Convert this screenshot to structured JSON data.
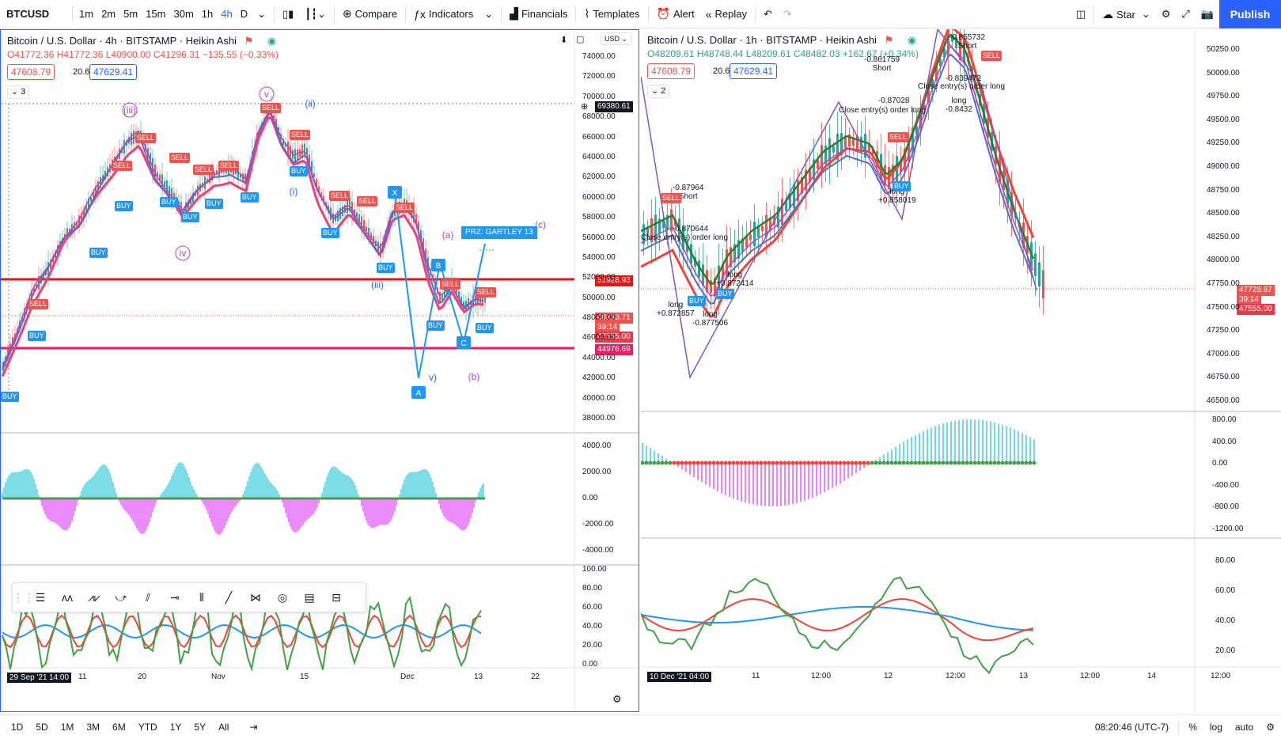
{
  "toolbar": {
    "symbol": "BTCUSD",
    "intervals": [
      "1m",
      "2m",
      "5m",
      "15m",
      "30m",
      "1h",
      "4h",
      "D"
    ],
    "active_interval": "4h",
    "compare": "Compare",
    "indicators": "Indicators",
    "financials": "Financials",
    "templates": "Templates",
    "alert": "Alert",
    "replay": "Replay",
    "star": "Star",
    "publish": "Publish"
  },
  "left": {
    "title": "Bitcoin / U.S. Dollar · 4h · BITSTAMP · Heikin Ashi",
    "ohlc": "O41772.36 H41772.36 L40900.00 C41296.31 −135.55 (−0.33%)",
    "bid": "47608.79",
    "spread": "20.62",
    "ask": "47629.41",
    "count": "3",
    "currency": "USD",
    "price_axis": [
      "74000.00",
      "72000.00",
      "70000.00",
      "68000.00",
      "66000.00",
      "64000.00",
      "62000.00",
      "60000.00",
      "58000.00",
      "56000.00",
      "54000.00",
      "52000.00",
      "50000.00",
      "48000.00",
      "46000.00",
      "44000.00",
      "42000.00",
      "40000.00",
      "38000.00"
    ],
    "price_labels": {
      "top": "69380.61",
      "red": "51928.93",
      "current": "48233.71",
      "countdown": "39:14",
      "low": "47555.00",
      "pink": "44976.69"
    },
    "osc_axis": [
      "4000.00",
      "2000.00",
      "0.00",
      "-2000.00",
      "-4000.00"
    ],
    "rsi_axis": [
      "100.00",
      "80.00",
      "60.00",
      "40.00",
      "20.00",
      "0.00"
    ],
    "time_axis": [
      "29 Sep '21",
      "14:00",
      "11",
      "20",
      "Nov",
      "15",
      "Dec",
      "13",
      "22"
    ],
    "annotations": {
      "prz": "PRZ: GARTLEY 13",
      "a_label": "(a)",
      "b_label": "(b)",
      "c_label": "(c)",
      "iii": "(iii)",
      "iv": "iv",
      "v": "v",
      "ii": "(ii)",
      "i": "(i)",
      "iii2": "(iii)",
      "v2": "v)",
      "pt_a": "A",
      "pt_b": "B",
      "pt_x": "X",
      "pt_c": "C"
    },
    "signal_buy": "BUY",
    "signal_sell": "SELL"
  },
  "right": {
    "title": "Bitcoin / U.S. Dollar · 1h · BITSTAMP · Heikin Ashi",
    "ohlc": "O48209.61 H48748.44 L48209.61 C48482.03 +162.67 (+0.34%)",
    "bid": "47608.79",
    "spread": "20.62",
    "ask": "47629.41",
    "count": "2",
    "price_axis": [
      "50250.00",
      "50000.00",
      "49750.00",
      "49500.00",
      "49250.00",
      "49000.00",
      "48750.00",
      "48500.00",
      "48250.00",
      "48000.00",
      "47750.00",
      "47500.00",
      "47250.00",
      "47000.00",
      "46750.00",
      "46500.00"
    ],
    "price_labels": {
      "current": "47728.87",
      "countdown": "39:14",
      "low": "47555.00"
    },
    "osc_axis": [
      "800.00",
      "400.00",
      "0.00",
      "-400.00",
      "-800.00",
      "-1200.00"
    ],
    "rsi_axis": [
      "80.00",
      "60.00",
      "40.00",
      "20.00"
    ],
    "time_axis": [
      "10 Dec '21",
      "04:00",
      "11",
      "12:00",
      "12",
      "12:00",
      "13",
      "12:00",
      "14",
      "12:00"
    ],
    "trade_notes": [
      {
        "a": "-0.855732",
        "b": "Short"
      },
      {
        "a": "-0.861759",
        "b": "Short"
      },
      {
        "a": "-0.839472",
        "b": ""
      },
      {
        "a": "Close entry(s) order long",
        "b": ""
      },
      {
        "a": "-0.87028",
        "b": ""
      },
      {
        "a": "Close entry(s) order long",
        "b": ""
      },
      {
        "a": "long",
        "b": "-0.8432"
      },
      {
        "a": "-0.87964",
        "b": "Short"
      },
      {
        "a": "long",
        "b": "+0.858019"
      },
      {
        "a": "-0.870644",
        "b": ""
      },
      {
        "a": "Close entry(s) order long",
        "b": ""
      },
      {
        "a": "long",
        "b": "+0.872414"
      },
      {
        "a": "long",
        "b": "+0.872857"
      },
      {
        "a": "long",
        "b": "-0.877506"
      }
    ],
    "signal_buy": "BUY",
    "signal_sell": "SELL"
  },
  "bottom": {
    "ranges": [
      "1D",
      "5D",
      "1M",
      "3M",
      "6M",
      "YTD",
      "1Y",
      "5Y",
      "All"
    ],
    "time": "08:20:46 (UTC-7)",
    "pct": "%",
    "log": "log",
    "auto": "auto"
  }
}
